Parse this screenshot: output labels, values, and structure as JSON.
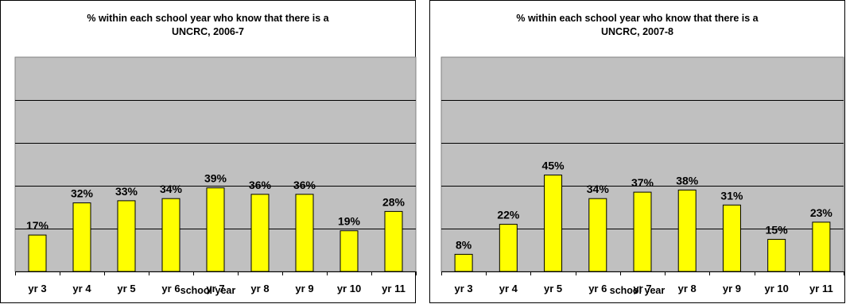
{
  "charts": [
    {
      "title_line1": "% within each school year who know that there is a",
      "title_line2": "UNCRC, 2006-7",
      "xlabel": "school year"
    },
    {
      "title_line1": "% within each school year who know that there is a",
      "title_line2": "UNCRC, 2007-8",
      "xlabel": "school year"
    }
  ],
  "chart_data": [
    {
      "type": "bar",
      "title": "% within each school year who know that there is a UNCRC, 2006-7",
      "xlabel": "school year",
      "ylabel": "",
      "categories": [
        "yr 3",
        "yr 4",
        "yr 5",
        "yr 6",
        "yr 7",
        "yr 8",
        "yr 9",
        "yr 10",
        "yr 11"
      ],
      "values": [
        17,
        32,
        33,
        34,
        39,
        36,
        36,
        19,
        28
      ],
      "data_labels": [
        "17%",
        "32%",
        "33%",
        "34%",
        "39%",
        "36%",
        "36%",
        "19%",
        "28%"
      ],
      "ylim": [
        0,
        100
      ],
      "grid": true,
      "legend": "none",
      "colors": {
        "bar": "#ffff00",
        "bar_edge": "#000000",
        "plot_bg": "#c0c0c0",
        "grid": "#000000"
      }
    },
    {
      "type": "bar",
      "title": "% within each school year who know that there is a UNCRC, 2007-8",
      "xlabel": "school year",
      "ylabel": "",
      "categories": [
        "yr 3",
        "yr 4",
        "yr 5",
        "yr 6",
        "yr 7",
        "yr 8",
        "yr 9",
        "yr 10",
        "yr 11"
      ],
      "values": [
        8,
        22,
        45,
        34,
        37,
        38,
        31,
        15,
        23
      ],
      "data_labels": [
        "8%",
        "22%",
        "45%",
        "34%",
        "37%",
        "38%",
        "31%",
        "15%",
        "23%"
      ],
      "ylim": [
        0,
        100
      ],
      "grid": true,
      "legend": "none",
      "colors": {
        "bar": "#ffff00",
        "bar_edge": "#000000",
        "plot_bg": "#c0c0c0",
        "grid": "#000000"
      }
    }
  ]
}
